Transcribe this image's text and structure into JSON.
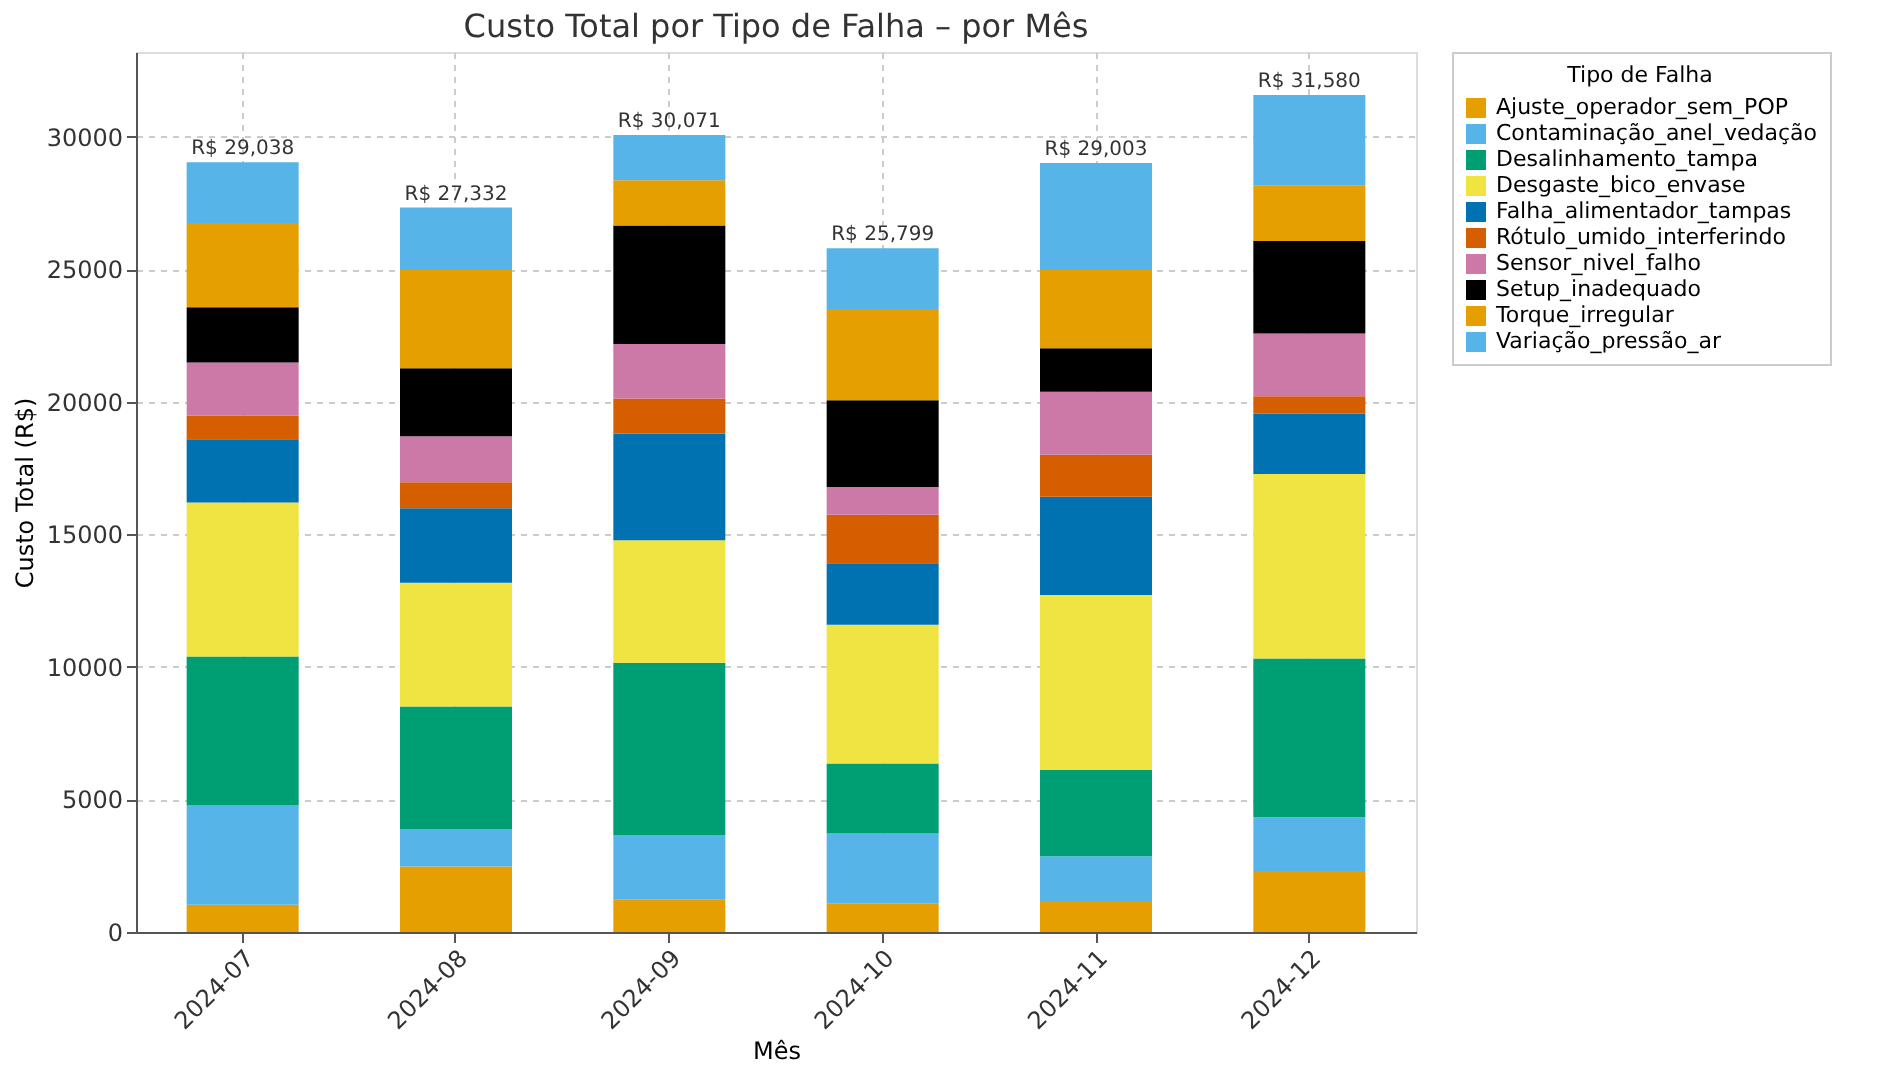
{
  "chart_data": {
    "type": "bar",
    "title": "Custo Total por Tipo de Falha – por Mês",
    "xlabel": "Mês",
    "ylabel": "Custo Total (R$)",
    "legend_title": "Tipo de Falha",
    "categories": [
      "2024-07",
      "2024-08",
      "2024-09",
      "2024-10",
      "2024-11",
      "2024-12"
    ],
    "stacked": true,
    "series": [
      {
        "name": "Ajuste_operador_sem_POP",
        "color": "#e69f00",
        "values": [
          1030,
          2470,
          1220,
          1080,
          1170,
          2300
        ]
      },
      {
        "name": "Contaminação_anel_vedação",
        "color": "#56b4e9",
        "values": [
          3740,
          1420,
          2440,
          2640,
          1690,
          2030
        ]
      },
      {
        "name": "Desalinhamento_tampa",
        "color": "#009e73",
        "values": [
          5620,
          4620,
          6500,
          2640,
          3250,
          5990
        ]
      },
      {
        "name": "Desgaste_bico_envase",
        "color": "#f0e442",
        "values": [
          5810,
          4670,
          4620,
          5230,
          6600,
          6960
        ]
      },
      {
        "name": "Falha_alimentador_tampas",
        "color": "#0072b2",
        "values": [
          2390,
          2810,
          4030,
          2320,
          3710,
          2270
        ]
      },
      {
        "name": "Rótulo_umido_interferindo",
        "color": "#d55e00",
        "values": [
          900,
          980,
          1320,
          1830,
          1590,
          660
        ]
      },
      {
        "name": "Sensor_nivel_falho",
        "color": "#cc79a7",
        "values": [
          2000,
          1730,
          2050,
          1050,
          2370,
          2370
        ]
      },
      {
        "name": "Setup_inadequado",
        "color": "#000000",
        "values": [
          2080,
          2570,
          4470,
          3270,
          1640,
          3490
        ]
      },
      {
        "name": "Torque_irregular",
        "color": "#e69f00",
        "values": [
          3180,
          3710,
          1710,
          3440,
          2960,
          2080
        ]
      },
      {
        "name": "Variação_pressão_ar",
        "color": "#56b4e9",
        "values": [
          2288,
          2352,
          1711,
          2299,
          4028,
          3431
        ]
      }
    ],
    "totals": [
      "R$ 29,038",
      "R$ 27,332",
      "R$ 30,071",
      "R$ 25,799",
      "R$ 29,003",
      "R$ 31,580"
    ],
    "ylim": [
      0,
      33200
    ],
    "yticks": [
      0,
      5000,
      10000,
      15000,
      20000,
      25000,
      30000
    ],
    "grid": true,
    "legend": "top right"
  }
}
